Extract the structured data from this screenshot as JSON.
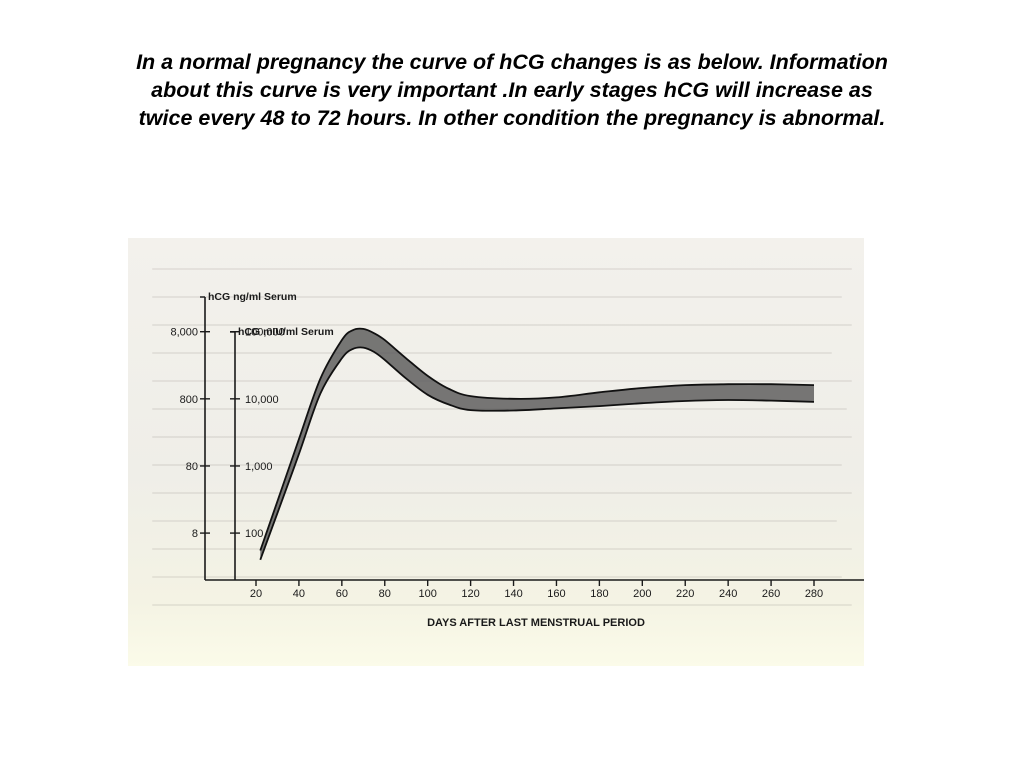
{
  "slide": {
    "title_lines": [
      "In a normal pregnancy the curve of hCG changes is as below. Information",
      "about this curve is very important .In early stages hCG will increase as",
      "twice every 48 to 72 hours. In other condition the pregnancy is abnormal."
    ]
  },
  "chart_data": {
    "type": "area",
    "title": "",
    "xlabel": "DAYS AFTER LAST MENSTRUAL PERIOD",
    "x_ticks": [
      20,
      40,
      60,
      80,
      100,
      120,
      140,
      160,
      180,
      200,
      220,
      240,
      260,
      280
    ],
    "xlim": [
      20,
      285
    ],
    "y_axes": [
      {
        "label": "hCG ng/ml Serum",
        "scale": "log",
        "ticks": [
          8,
          80,
          800,
          8000
        ],
        "tick_labels": [
          "8",
          "80",
          "800",
          "8,000"
        ]
      },
      {
        "label": "hCG mIU/ml Serum",
        "scale": "log",
        "ticks": [
          100,
          1000,
          10000,
          100000
        ],
        "tick_labels": [
          "100",
          "1,000",
          "10,000",
          "100,000"
        ],
        "ylim": [
          20,
          250000
        ]
      }
    ],
    "band_color": "#5a5a5a",
    "series": [
      {
        "role": "upper",
        "x": [
          22,
          30,
          40,
          50,
          60,
          65,
          70,
          75,
          80,
          90,
          100,
          110,
          120,
          140,
          160,
          180,
          200,
          220,
          240,
          260,
          280
        ],
        "y": [
          55,
          300,
          2500,
          20000,
          75000,
          105000,
          110000,
          95000,
          75000,
          40000,
          22000,
          14000,
          11000,
          10000,
          10500,
          12500,
          14500,
          16000,
          16500,
          16500,
          16000
        ]
      },
      {
        "role": "lower",
        "x": [
          22,
          30,
          40,
          50,
          60,
          65,
          70,
          75,
          80,
          90,
          100,
          110,
          120,
          140,
          160,
          180,
          200,
          220,
          240,
          260,
          280
        ],
        "y": [
          40,
          200,
          1500,
          12000,
          40000,
          55000,
          58000,
          50000,
          38000,
          20000,
          11500,
          8200,
          6800,
          6700,
          7200,
          7800,
          8600,
          9300,
          9600,
          9400,
          9000
        ]
      }
    ]
  }
}
